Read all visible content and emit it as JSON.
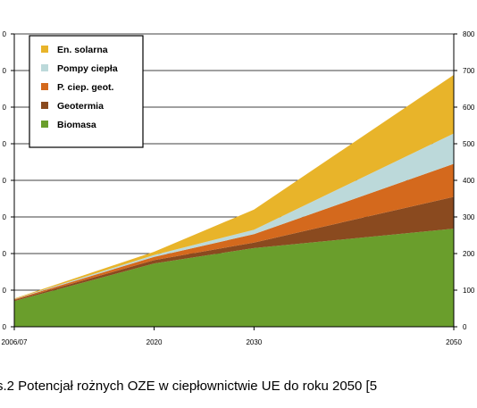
{
  "chart_data": {
    "type": "area",
    "stacked": true,
    "x": [
      2006,
      2020,
      2030,
      2050
    ],
    "x_tick_labels": [
      "2006/07",
      "2020",
      "2030",
      "2050"
    ],
    "y_right_ticks": [
      "0",
      "100",
      "200",
      "300",
      "400",
      "500",
      "600",
      "700",
      "800"
    ],
    "ylim_right": [
      0,
      800
    ],
    "y_left_ticks": [
      "0",
      "0",
      "0",
      "0",
      "0",
      "0",
      "0",
      "0",
      "0"
    ],
    "grid": "horizontal",
    "legend_position": "top-left",
    "series": [
      {
        "name": "Biomasa",
        "color": "#6a9e2c",
        "values": [
          70,
          173,
          215,
          268
        ]
      },
      {
        "name": "Geotermia",
        "color": "#8a4a1f",
        "values": [
          3,
          9,
          15,
          87
        ]
      },
      {
        "name": "P. ciep. geot.",
        "color": "#d4691d",
        "values": [
          2,
          9,
          23,
          90
        ]
      },
      {
        "name": "Pompy ciepła",
        "color": "#bcd9da",
        "values": [
          1,
          5,
          12,
          83
        ]
      },
      {
        "name": "En. solarna",
        "color": "#e8b42a",
        "values": [
          1,
          9,
          55,
          160
        ]
      }
    ],
    "legend_order": [
      "En. solarna",
      "Pompy ciepła",
      "P. ciep. geot.",
      "Geotermia",
      "Biomasa"
    ]
  },
  "caption": "s.2  Potencjał rożnych OZE w ciepłownictwie UE do roku 2050 [5"
}
